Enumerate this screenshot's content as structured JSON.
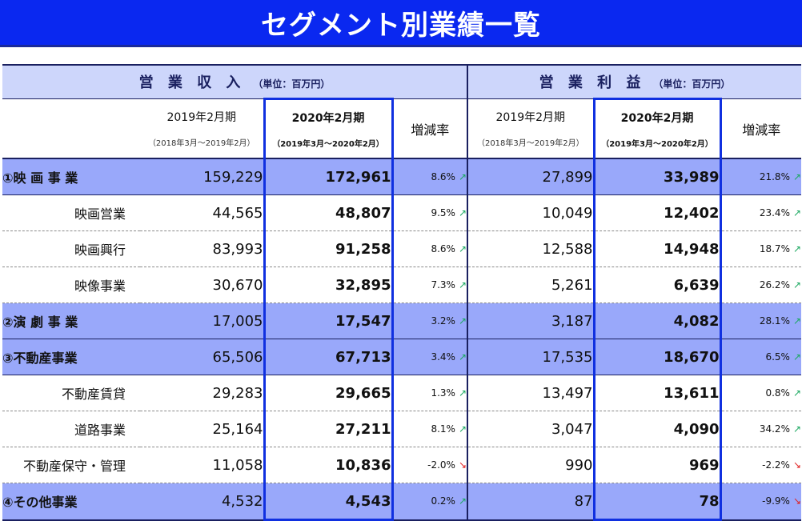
{
  "title": "セグメント別業績一覧",
  "groups": {
    "revenue": {
      "label": "営 業 収 入",
      "unit": "（単位：百万円）"
    },
    "profit": {
      "label": "営 業 利 益",
      "unit": "（単位：百万円）"
    }
  },
  "columns": {
    "prev": {
      "period": "2019年2月期",
      "range": "（2018年3月～2019年2月）"
    },
    "curr": {
      "period": "2020年2月期",
      "range": "（2019年3月～2020年2月）"
    },
    "rate": "増減率"
  },
  "rows": [
    {
      "name": "①映 画 事 業",
      "segment": true,
      "rev_prev": "159,229",
      "rev_curr": "172,961",
      "rev_rate": "8.6%",
      "rev_dir": "up",
      "pro_prev": "27,899",
      "pro_curr": "33,989",
      "pro_rate": "21.8%",
      "pro_dir": "up"
    },
    {
      "name": "映画営業",
      "segment": false,
      "rev_prev": "44,565",
      "rev_curr": "48,807",
      "rev_rate": "9.5%",
      "rev_dir": "up",
      "pro_prev": "10,049",
      "pro_curr": "12,402",
      "pro_rate": "23.4%",
      "pro_dir": "up"
    },
    {
      "name": "映画興行",
      "segment": false,
      "rev_prev": "83,993",
      "rev_curr": "91,258",
      "rev_rate": "8.6%",
      "rev_dir": "up",
      "pro_prev": "12,588",
      "pro_curr": "14,948",
      "pro_rate": "18.7%",
      "pro_dir": "up"
    },
    {
      "name": "映像事業",
      "segment": false,
      "rev_prev": "30,670",
      "rev_curr": "32,895",
      "rev_rate": "7.3%",
      "rev_dir": "up",
      "pro_prev": "5,261",
      "pro_curr": "6,639",
      "pro_rate": "26.2%",
      "pro_dir": "up"
    },
    {
      "name": "②演 劇 事 業",
      "segment": true,
      "rev_prev": "17,005",
      "rev_curr": "17,547",
      "rev_rate": "3.2%",
      "rev_dir": "up",
      "pro_prev": "3,187",
      "pro_curr": "4,082",
      "pro_rate": "28.1%",
      "pro_dir": "up"
    },
    {
      "name": "③不動産事業",
      "segment": true,
      "rev_prev": "65,506",
      "rev_curr": "67,713",
      "rev_rate": "3.4%",
      "rev_dir": "up",
      "pro_prev": "17,535",
      "pro_curr": "18,670",
      "pro_rate": "6.5%",
      "pro_dir": "up"
    },
    {
      "name": "不動産賃貸",
      "segment": false,
      "rev_prev": "29,283",
      "rev_curr": "29,665",
      "rev_rate": "1.3%",
      "rev_dir": "up",
      "pro_prev": "13,497",
      "pro_curr": "13,611",
      "pro_rate": "0.8%",
      "pro_dir": "up"
    },
    {
      "name": "道路事業",
      "segment": false,
      "rev_prev": "25,164",
      "rev_curr": "27,211",
      "rev_rate": "8.1%",
      "rev_dir": "up",
      "pro_prev": "3,047",
      "pro_curr": "4,090",
      "pro_rate": "34.2%",
      "pro_dir": "up"
    },
    {
      "name": "不動産保守・管理",
      "segment": false,
      "rev_prev": "11,058",
      "rev_curr": "10,836",
      "rev_rate": "-2.0%",
      "rev_dir": "down",
      "pro_prev": "990",
      "pro_curr": "969",
      "pro_rate": "-2.2%",
      "pro_dir": "down"
    },
    {
      "name": "④その他事業",
      "segment": true,
      "rev_prev": "4,532",
      "rev_curr": "4,543",
      "rev_rate": "0.2%",
      "rev_dir": "up",
      "pro_prev": "87",
      "pro_curr": "78",
      "pro_rate": "-9.9%",
      "pro_dir": "down"
    }
  ],
  "icons": {
    "up": "↗",
    "down": "↘"
  },
  "colors": {
    "banner": "#0a28f0",
    "segment_row": "#99a8fa",
    "header_bg": "#cdd6fb",
    "highlight_border": "#1030e0",
    "up": "#1aa860",
    "down": "#e02020"
  }
}
